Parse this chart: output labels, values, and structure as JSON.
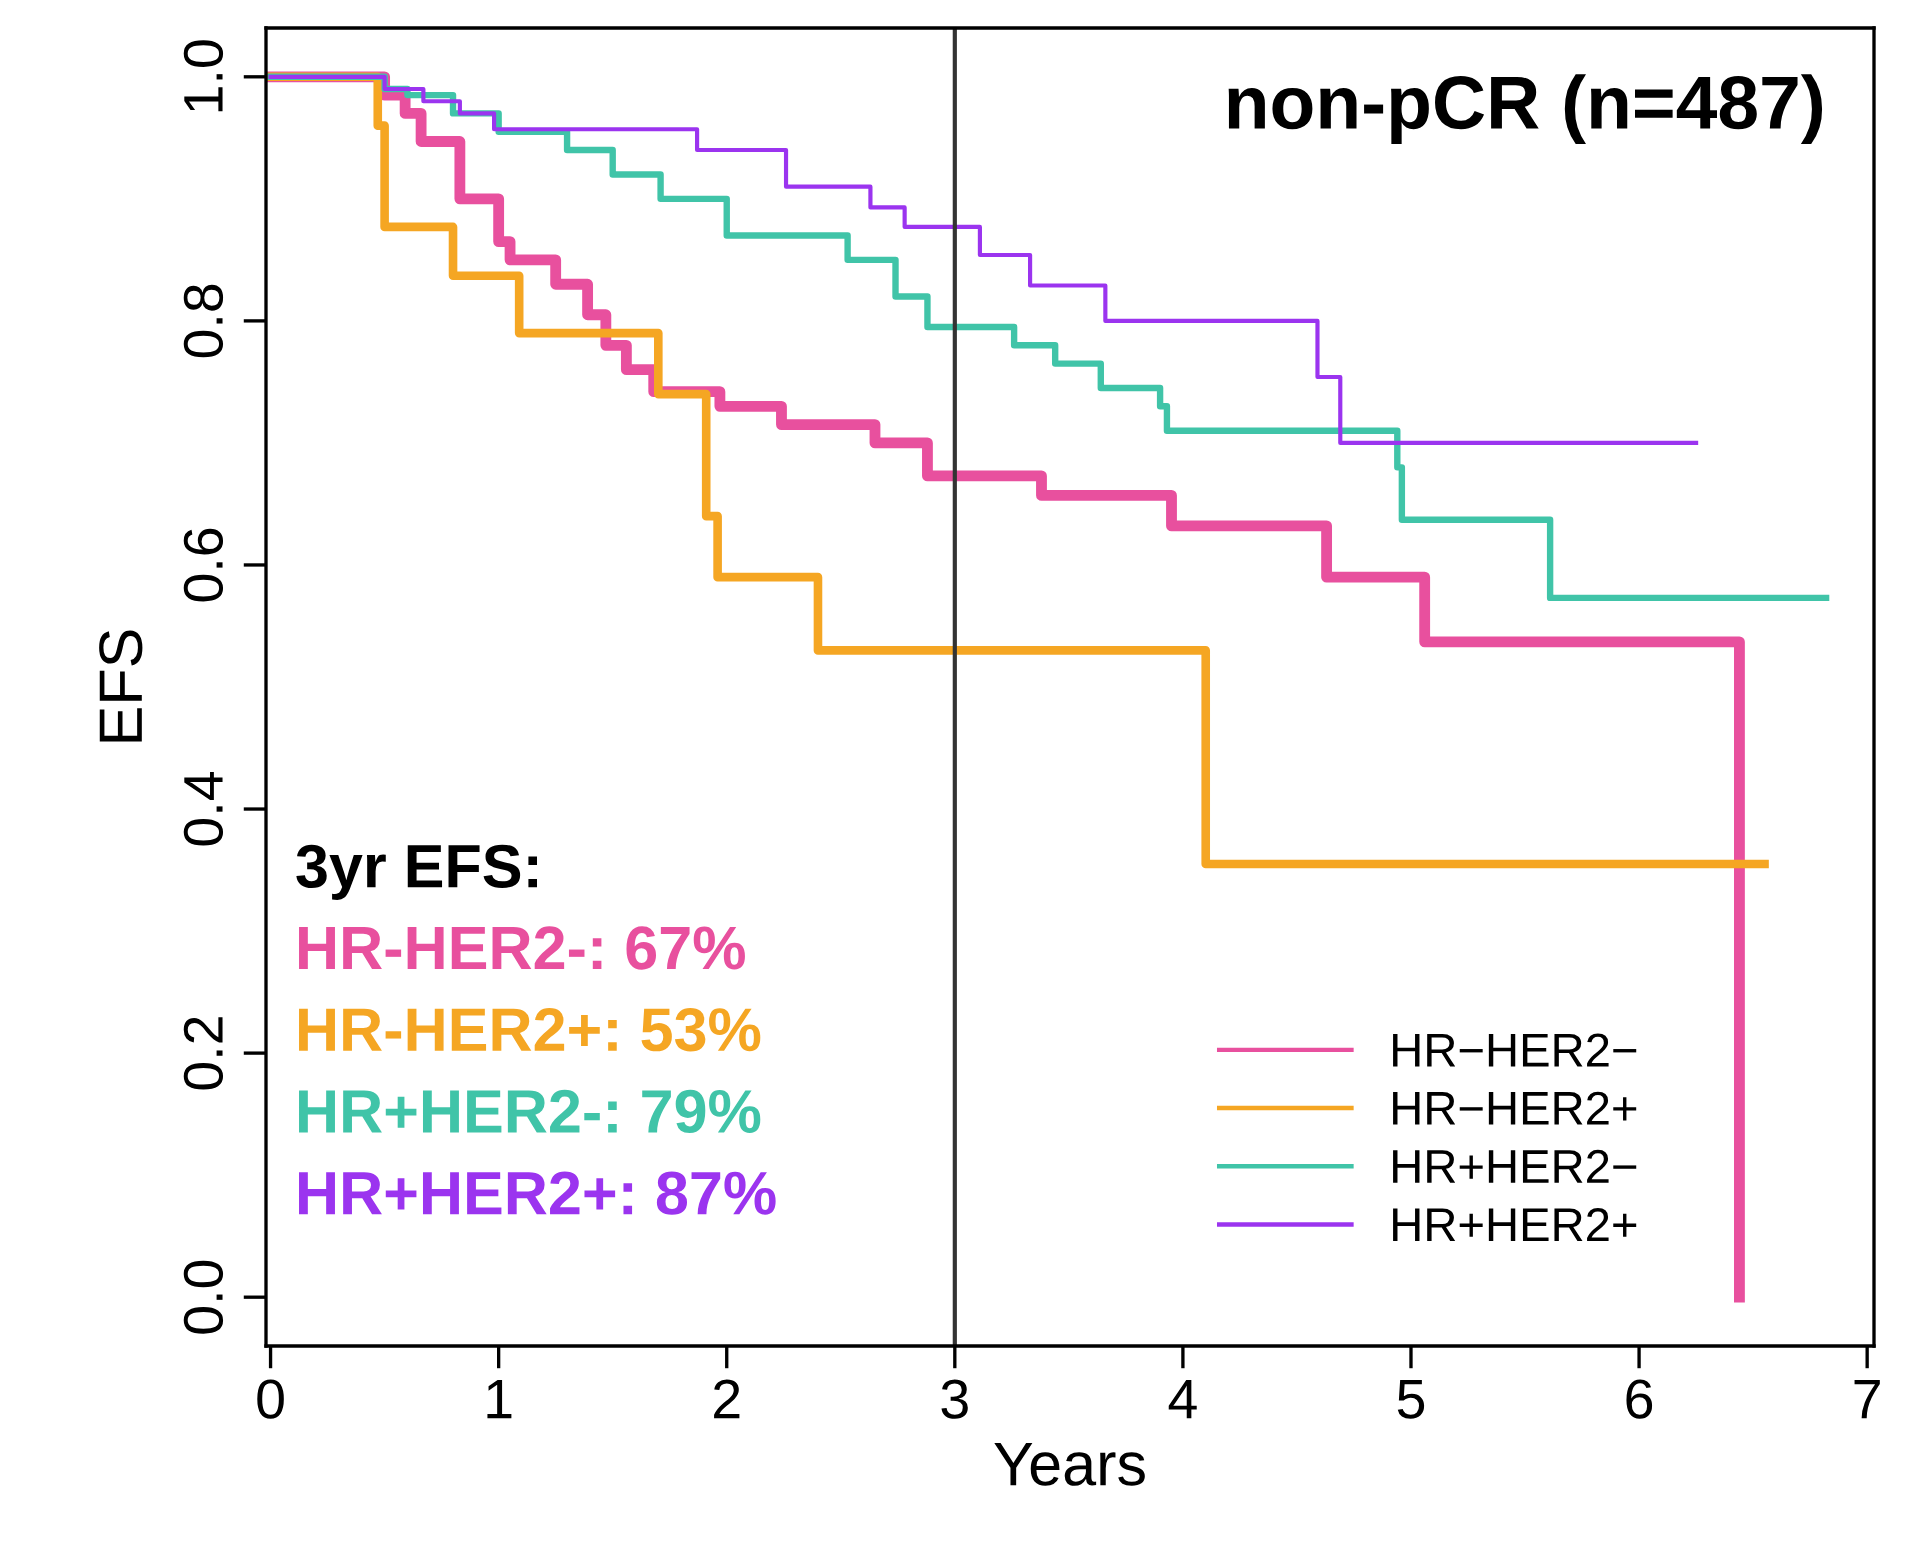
{
  "chart_data": {
    "type": "step",
    "title": "non-pCR (n=487)",
    "xlabel": "Years",
    "ylabel": "EFS",
    "xlim": [
      -0.02,
      7.03
    ],
    "ylim": [
      -0.04,
      1.04
    ],
    "xticks": [
      0,
      1,
      2,
      3,
      4,
      5,
      6,
      7
    ],
    "yticks": [
      {
        "value": 0,
        "label": "0.0"
      },
      {
        "value": 0.2,
        "label": "0.2"
      },
      {
        "value": 0.4,
        "label": "0.4"
      },
      {
        "value": 0.6,
        "label": "0.6"
      },
      {
        "value": 0.8,
        "label": "0.8"
      },
      {
        "value": 1,
        "label": "1.0"
      }
    ],
    "grid": false,
    "legend": "bottom right",
    "line_style": "solid",
    "ref_lines": [
      {
        "axis": "x",
        "value": 3,
        "label": null,
        "color": "#333333"
      }
    ],
    "annotations": [
      "3yr EFS:",
      "HR-HER2-: 67%",
      "HR-HER2+: 53%",
      "HR+HER2-: 79%",
      "HR+HER2+: 87%"
    ],
    "series": [
      {
        "name": "HR−HER2−",
        "color": "#e8509e",
        "x": [
          0,
          0.5,
          0.59,
          0.66,
          0.83,
          1.0,
          1.05,
          1.25,
          1.39,
          1.47,
          1.56,
          1.68,
          1.97,
          2.24,
          2.65,
          2.88,
          3.38,
          3.95,
          4.63,
          5.06,
          6.44
        ],
        "values": [
          1.0,
          0.985,
          0.97,
          0.947,
          0.9,
          0.865,
          0.85,
          0.83,
          0.805,
          0.78,
          0.76,
          0.742,
          0.73,
          0.715,
          0.7,
          0.673,
          0.657,
          0.632,
          0.59,
          0.537,
          0.0
        ]
      },
      {
        "name": "HR−HER2+",
        "color": "#f5a623",
        "x": [
          0,
          0.47,
          0.5,
          0.8,
          1.09,
          1.7,
          1.91,
          1.96,
          2.4,
          4.1,
          6.55
        ],
        "values": [
          1.0,
          0.96,
          0.877,
          0.837,
          0.79,
          0.74,
          0.64,
          0.59,
          0.53,
          0.355,
          0.355
        ]
      },
      {
        "name": "HR+HER2−",
        "color": "#40c4a8",
        "x": [
          0,
          0.5,
          0.6,
          0.8,
          1.0,
          1.3,
          1.5,
          1.71,
          2.0,
          2.53,
          2.74,
          2.88,
          3.26,
          3.44,
          3.64,
          3.9,
          3.93,
          4.94,
          4.96,
          5.61,
          6.82
        ],
        "values": [
          1.0,
          0.99,
          0.985,
          0.97,
          0.955,
          0.94,
          0.92,
          0.9,
          0.87,
          0.85,
          0.82,
          0.795,
          0.78,
          0.765,
          0.745,
          0.73,
          0.71,
          0.68,
          0.637,
          0.573,
          0.573
        ]
      },
      {
        "name": "HR+HER2+",
        "color": "#9b34ef",
        "x": [
          0,
          0.5,
          0.67,
          0.83,
          0.98,
          1.87,
          2.26,
          2.63,
          2.78,
          3.11,
          3.33,
          3.66,
          4.59,
          4.69,
          6.25
        ],
        "values": [
          1.0,
          0.99,
          0.98,
          0.97,
          0.957,
          0.94,
          0.91,
          0.893,
          0.877,
          0.854,
          0.829,
          0.8,
          0.754,
          0.7,
          0.7
        ]
      }
    ]
  }
}
